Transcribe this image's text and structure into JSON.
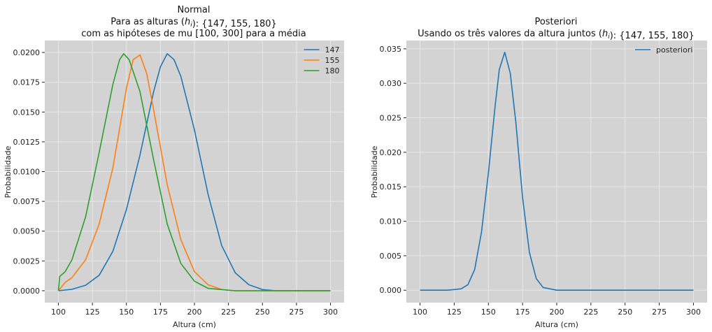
{
  "chart_data": [
    {
      "type": "line",
      "title_lines": [
        "Normal",
        "Para as alturas (h_i): {147, 155, 180}",
        "com as hipóteses de mu [100, 300] para a média"
      ],
      "xlabel": "Altura (cm)",
      "ylabel": "Probabilidade",
      "xlim": [
        90,
        310
      ],
      "ylim": [
        -0.001,
        0.021
      ],
      "xticks": [
        100,
        125,
        150,
        175,
        200,
        225,
        250,
        275,
        300
      ],
      "xtick_labels": [
        "100",
        "125",
        "150",
        "175",
        "200",
        "225",
        "250",
        "275",
        "300"
      ],
      "yticks": [
        0,
        0.0025,
        0.005,
        0.0075,
        0.01,
        0.0125,
        0.015,
        0.0175,
        0.02
      ],
      "ytick_labels": [
        "0.0000",
        "0.0025",
        "0.0050",
        "0.0075",
        "0.0100",
        "0.0125",
        "0.0150",
        "0.0175",
        "0.0200"
      ],
      "grid": true,
      "legend_position": "top-right",
      "background": "#d3d3d3",
      "series": [
        {
          "name": "147",
          "color": "#1f77b4",
          "x": [
            100,
            110,
            120,
            130,
            140,
            150,
            160,
            170,
            175,
            180,
            185,
            190,
            200,
            210,
            220,
            230,
            240,
            250,
            260,
            275,
            300
          ],
          "y": [
            0.0,
            0.00012,
            0.00046,
            0.0013,
            0.0033,
            0.0068,
            0.0114,
            0.0167,
            0.0188,
            0.0199,
            0.0194,
            0.018,
            0.0135,
            0.0081,
            0.0038,
            0.0015,
            0.0005,
            0.0001,
            0.0,
            0.0,
            0.0
          ]
        },
        {
          "name": "155",
          "color": "#ff7f0e",
          "x": [
            100,
            105,
            110,
            120,
            130,
            140,
            145,
            150,
            155,
            160,
            165,
            170,
            180,
            190,
            200,
            210,
            220,
            230,
            250,
            300
          ],
          "y": [
            0.0,
            0.0007,
            0.0011,
            0.0026,
            0.0056,
            0.0103,
            0.0136,
            0.017,
            0.0194,
            0.0198,
            0.0182,
            0.0152,
            0.0089,
            0.0043,
            0.0016,
            0.0005,
            0.0001,
            0.0,
            0.0,
            0.0
          ]
        },
        {
          "name": "180",
          "color": "#2ca02c",
          "x": [
            100,
            101,
            105,
            110,
            120,
            130,
            140,
            145,
            148,
            152,
            160,
            170,
            180,
            190,
            200,
            210,
            220,
            230,
            250,
            300
          ],
          "y": [
            0.0,
            0.0012,
            0.0016,
            0.0026,
            0.0062,
            0.0116,
            0.0173,
            0.0194,
            0.0199,
            0.0194,
            0.0167,
            0.011,
            0.0056,
            0.0023,
            0.0008,
            0.0002,
            0.0001,
            0.0,
            0.0,
            0.0
          ]
        }
      ]
    },
    {
      "type": "line",
      "title_lines": [
        "Posteriori",
        "Usando os três valores da altura juntos (h_i): {147, 155, 180}"
      ],
      "xlabel": "Altura (cm)",
      "ylabel": "Probabilidade",
      "xlim": [
        90,
        310
      ],
      "ylim": [
        -0.0018,
        0.0362
      ],
      "xticks": [
        100,
        125,
        150,
        175,
        200,
        225,
        250,
        275,
        300
      ],
      "xtick_labels": [
        "100",
        "125",
        "150",
        "175",
        "200",
        "225",
        "250",
        "275",
        "300"
      ],
      "yticks": [
        0,
        0.005,
        0.01,
        0.015,
        0.02,
        0.025,
        0.03,
        0.035
      ],
      "ytick_labels": [
        "0.000",
        "0.005",
        "0.010",
        "0.015",
        "0.020",
        "0.025",
        "0.030",
        "0.035"
      ],
      "grid": true,
      "legend_position": "top-right",
      "background": "#d3d3d3",
      "series": [
        {
          "name": "posteriori",
          "color": "#1f77b4",
          "x": [
            100,
            120,
            130,
            135,
            140,
            145,
            150,
            155,
            158,
            162,
            166,
            170,
            175,
            180,
            185,
            190,
            200,
            220,
            250,
            300
          ],
          "y": [
            0.0,
            0.0,
            0.0002,
            0.0008,
            0.003,
            0.0085,
            0.017,
            0.0268,
            0.032,
            0.0345,
            0.0315,
            0.0245,
            0.0135,
            0.0055,
            0.0017,
            0.0004,
            0.0,
            0.0,
            0.0,
            0.0
          ]
        }
      ]
    }
  ]
}
